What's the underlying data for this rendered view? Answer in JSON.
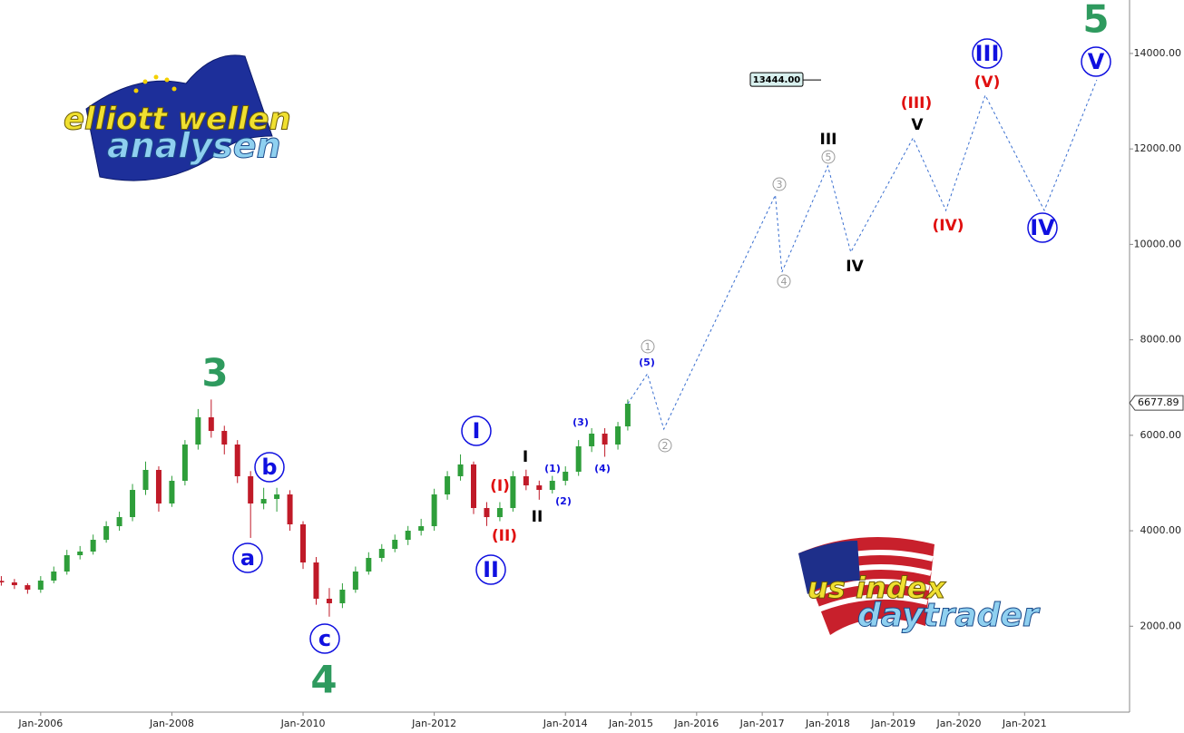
{
  "chart_data": {
    "type": "candlestick",
    "xlim": [
      2005.38,
      2022.6
    ],
    "ylim": [
      200,
      15120
    ],
    "xticks": [
      {
        "value": 2006,
        "label": "Jan-2006"
      },
      {
        "value": 2008,
        "label": "Jan-2008"
      },
      {
        "value": 2010,
        "label": "Jan-2010"
      },
      {
        "value": 2012,
        "label": "Jan-2012"
      },
      {
        "value": 2014,
        "label": "Jan-2014"
      },
      {
        "value": 2015,
        "label": "Jan-2015"
      },
      {
        "value": 2016,
        "label": "Jan-2016"
      },
      {
        "value": 2017,
        "label": "Jan-2017"
      },
      {
        "value": 2018,
        "label": "Jan-2018"
      },
      {
        "value": 2019,
        "label": "Jan-2019"
      },
      {
        "value": 2020,
        "label": "Jan-2020"
      },
      {
        "value": 2021,
        "label": "Jan-2021"
      }
    ],
    "yticks": [
      {
        "value": 2000,
        "label": "2000.00"
      },
      {
        "value": 4000,
        "label": "4000.00"
      },
      {
        "value": 6000,
        "label": "6000.00"
      },
      {
        "value": 8000,
        "label": "8000.00"
      },
      {
        "value": 10000,
        "label": "10000.00"
      },
      {
        "value": 12000,
        "label": "12000.00"
      },
      {
        "value": 14000,
        "label": "14000.00"
      }
    ],
    "grid": false,
    "up_color": "#2e9e3a",
    "down_color": "#c01a28",
    "candles": {
      "x": [
        2005.4,
        2005.6,
        2005.8,
        2006.0,
        2006.2,
        2006.4,
        2006.6,
        2006.8,
        2007.0,
        2007.2,
        2007.4,
        2007.6,
        2007.8,
        2008.0,
        2008.2,
        2008.4,
        2008.6,
        2008.8,
        2009.0,
        2009.2,
        2009.4,
        2009.6,
        2009.8,
        2010.0,
        2010.2,
        2010.4,
        2010.6,
        2010.8,
        2011.0,
        2011.2,
        2011.4,
        2011.6,
        2011.8,
        2012.0,
        2012.2,
        2012.4,
        2012.6,
        2012.8,
        2013.0,
        2013.2,
        2013.4,
        2013.6,
        2013.8,
        2014.0,
        2014.2,
        2014.4,
        2014.6,
        2014.8,
        2014.95
      ],
      "open": [
        2950,
        2918,
        2860,
        2766,
        2956,
        3146,
        3488,
        3564,
        3811,
        4096,
        4286,
        4856,
        5275,
        4571,
        5047,
        5807,
        6377,
        6092,
        5807,
        5142,
        4571,
        4666,
        4761,
        4134,
        3336,
        2576,
        2481,
        2766,
        3146,
        3431,
        3621,
        3811,
        4001,
        4096,
        4761,
        5142,
        5389,
        4476,
        4286,
        4476,
        5142,
        4951,
        4856,
        5047,
        5237,
        5769,
        6035,
        5807,
        6187
      ],
      "high": [
        3050,
        2990,
        2900,
        3050,
        3250,
        3600,
        3680,
        3920,
        4200,
        4400,
        4980,
        5450,
        5350,
        5150,
        5900,
        6550,
        6750,
        6200,
        5900,
        5250,
        4900,
        4900,
        4850,
        4200,
        3450,
        2800,
        2900,
        3250,
        3550,
        3720,
        3920,
        4100,
        4250,
        4880,
        5250,
        5600,
        5450,
        4600,
        4600,
        5250,
        5280,
        5050,
        5150,
        5350,
        5900,
        6150,
        6150,
        6280,
        6750
      ],
      "low": [
        2850,
        2780,
        2680,
        2700,
        2900,
        3080,
        3400,
        3500,
        3750,
        4000,
        4200,
        4750,
        4400,
        4500,
        4950,
        5700,
        5950,
        5600,
        5000,
        3850,
        4450,
        4400,
        4000,
        3200,
        2450,
        2200,
        2380,
        2700,
        3080,
        3350,
        3550,
        3700,
        3900,
        4000,
        4650,
        5050,
        4350,
        4100,
        4200,
        4400,
        4850,
        4650,
        4780,
        4950,
        5150,
        5650,
        5550,
        5700,
        6100
      ],
      "close": [
        2918,
        2860,
        2766,
        2956,
        3146,
        3488,
        3564,
        3811,
        4096,
        4286,
        4856,
        5275,
        4571,
        5047,
        5807,
        6377,
        6092,
        5807,
        5142,
        4571,
        4666,
        4761,
        4134,
        3336,
        2576,
        2481,
        2766,
        3146,
        3431,
        3621,
        3811,
        4001,
        4096,
        4761,
        5142,
        5389,
        4476,
        4286,
        4476,
        5142,
        4951,
        4856,
        5047,
        5237,
        5769,
        6035,
        5807,
        6187,
        6662
      ]
    },
    "projection": {
      "color": "#3a6fd0",
      "x": [
        2014.95,
        2015.25,
        2015.5,
        2017.2,
        2017.3,
        2018.0,
        2018.35,
        2019.3,
        2019.8,
        2020.4,
        2021.3,
        2022.1
      ],
      "values": [
        6662,
        7290,
        6130,
        11033,
        9418,
        11642,
        9836,
        12231,
        10711,
        13124,
        10711,
        13447
      ]
    },
    "last_price": {
      "value": 6677.89,
      "label": "6677.89"
    },
    "target_price": {
      "value": 13444,
      "label": "13444.00"
    },
    "annotations": [
      "3",
      "4",
      "5",
      "a",
      "b",
      "c",
      "I",
      "II",
      "(I)",
      "(II)",
      "I",
      "II",
      "(1)",
      "(2)",
      "(3)",
      "(4)",
      "(5)",
      "1",
      "2",
      "3",
      "4",
      "5",
      "III",
      "IV",
      "V",
      "(III)",
      "(IV)",
      "(V)",
      "III",
      "IV",
      "V"
    ],
    "logos": {
      "top": [
        "elliott wellen",
        "analysen"
      ],
      "bottom": [
        "us index",
        "daytrader"
      ]
    }
  }
}
